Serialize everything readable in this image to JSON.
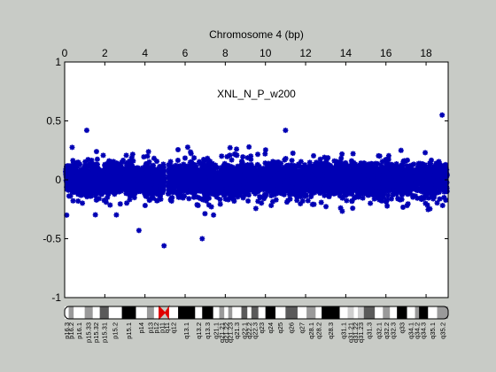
{
  "chart_data": {
    "type": "scatter",
    "title": "Chromosome 4 (bp)",
    "annotation": "XNL_N_P_w200",
    "xlim": [
      0,
      19.1
    ],
    "ylim": [
      -1,
      1
    ],
    "x_ticks": [
      0,
      2,
      4,
      6,
      8,
      10,
      12,
      14,
      16,
      18
    ],
    "y_ticks": [
      -1,
      -0.5,
      0,
      0.5,
      1
    ],
    "y_tick_labels": [
      "-1",
      "-0.5",
      "0",
      "0.5",
      "1"
    ],
    "x_axis_position": "top",
    "grid": false,
    "baseline_y": 0,
    "marker": "asterisk",
    "colors": {
      "points": "#0000b4",
      "baseline": "#8a8aa8",
      "centromere": "#e00000"
    },
    "gaps": [
      [
        4.95,
        5.15
      ]
    ],
    "summary": {
      "n_points_approx": 6000,
      "core_band": [
        -0.22,
        0.22
      ],
      "max_outliers": [
        {
          "x": 18.8,
          "y": 0.55
        },
        {
          "x": 1.1,
          "y": 0.42
        },
        {
          "x": 11.0,
          "y": 0.42
        },
        {
          "x": 4.95,
          "y": -0.56
        },
        {
          "x": 6.85,
          "y": -0.5
        },
        {
          "x": 3.7,
          "y": -0.43
        }
      ]
    },
    "cytobands": [
      {
        "name": "p16.3",
        "start": 0.0,
        "end": 0.2,
        "stain": "white"
      },
      {
        "name": "p16.2",
        "start": 0.2,
        "end": 0.45,
        "stain": "gray"
      },
      {
        "name": "p16.1",
        "start": 0.45,
        "end": 1.0,
        "stain": "white"
      },
      {
        "name": "p15.33",
        "start": 1.0,
        "end": 1.4,
        "stain": "gray"
      },
      {
        "name": "p15.32",
        "start": 1.4,
        "end": 1.75,
        "stain": "white"
      },
      {
        "name": "p15.31",
        "start": 1.75,
        "end": 2.2,
        "stain": "darkgray"
      },
      {
        "name": "p15.2",
        "start": 2.2,
        "end": 2.85,
        "stain": "white"
      },
      {
        "name": "p15.1",
        "start": 2.85,
        "end": 3.55,
        "stain": "black"
      },
      {
        "name": "p14",
        "start": 3.55,
        "end": 4.1,
        "stain": "white"
      },
      {
        "name": "p13",
        "start": 4.1,
        "end": 4.45,
        "stain": "gray"
      },
      {
        "name": "p12",
        "start": 4.45,
        "end": 4.7,
        "stain": "white"
      },
      {
        "name": "p11",
        "start": 4.7,
        "end": 5.0,
        "stain": "acen"
      },
      {
        "name": "q11",
        "start": 5.0,
        "end": 5.2,
        "stain": "acen"
      },
      {
        "name": "q12",
        "start": 5.2,
        "end": 5.65,
        "stain": "white"
      },
      {
        "name": "q13.1",
        "start": 5.65,
        "end": 6.5,
        "stain": "black"
      },
      {
        "name": "q13.2",
        "start": 6.5,
        "end": 6.85,
        "stain": "white"
      },
      {
        "name": "q13.3",
        "start": 6.85,
        "end": 7.4,
        "stain": "black"
      },
      {
        "name": "q21.1",
        "start": 7.4,
        "end": 7.7,
        "stain": "white"
      },
      {
        "name": "q21.21",
        "start": 7.7,
        "end": 7.95,
        "stain": "gray"
      },
      {
        "name": "q21.22",
        "start": 7.95,
        "end": 8.15,
        "stain": "white"
      },
      {
        "name": "q21.23",
        "start": 8.15,
        "end": 8.35,
        "stain": "gray"
      },
      {
        "name": "q21.3",
        "start": 8.35,
        "end": 8.8,
        "stain": "white"
      },
      {
        "name": "q22.1",
        "start": 8.8,
        "end": 9.1,
        "stain": "darkgray"
      },
      {
        "name": "q22.2",
        "start": 9.1,
        "end": 9.3,
        "stain": "white"
      },
      {
        "name": "q22.3",
        "start": 9.3,
        "end": 9.65,
        "stain": "darkgray"
      },
      {
        "name": "q23",
        "start": 9.65,
        "end": 10.0,
        "stain": "white"
      },
      {
        "name": "q24",
        "start": 10.0,
        "end": 10.5,
        "stain": "black"
      },
      {
        "name": "q25",
        "start": 10.5,
        "end": 11.0,
        "stain": "white"
      },
      {
        "name": "q26",
        "start": 11.0,
        "end": 11.6,
        "stain": "darkgray"
      },
      {
        "name": "q27",
        "start": 11.6,
        "end": 12.05,
        "stain": "white"
      },
      {
        "name": "q28.1",
        "start": 12.05,
        "end": 12.5,
        "stain": "gray"
      },
      {
        "name": "q28.2",
        "start": 12.5,
        "end": 12.8,
        "stain": "white"
      },
      {
        "name": "q28.3",
        "start": 12.8,
        "end": 13.7,
        "stain": "black"
      },
      {
        "name": "q31.1",
        "start": 13.7,
        "end": 14.1,
        "stain": "white"
      },
      {
        "name": "q31.21",
        "start": 14.1,
        "end": 14.4,
        "stain": "lightgray"
      },
      {
        "name": "q31.22",
        "start": 14.4,
        "end": 14.6,
        "stain": "white"
      },
      {
        "name": "q31.23",
        "start": 14.6,
        "end": 14.9,
        "stain": "lightgray"
      },
      {
        "name": "q31.3",
        "start": 14.9,
        "end": 15.45,
        "stain": "darkgray"
      },
      {
        "name": "q32.1",
        "start": 15.45,
        "end": 15.85,
        "stain": "white"
      },
      {
        "name": "q32.2",
        "start": 15.85,
        "end": 16.2,
        "stain": "gray"
      },
      {
        "name": "q32.3",
        "start": 16.2,
        "end": 16.55,
        "stain": "white"
      },
      {
        "name": "q33",
        "start": 16.55,
        "end": 17.05,
        "stain": "black"
      },
      {
        "name": "q34.1",
        "start": 17.05,
        "end": 17.45,
        "stain": "white"
      },
      {
        "name": "q34.2",
        "start": 17.45,
        "end": 17.65,
        "stain": "gray"
      },
      {
        "name": "q34.3",
        "start": 17.65,
        "end": 18.1,
        "stain": "black"
      },
      {
        "name": "q35.1",
        "start": 18.1,
        "end": 18.55,
        "stain": "white"
      },
      {
        "name": "q35.2",
        "start": 18.55,
        "end": 19.1,
        "stain": "gray"
      }
    ]
  }
}
